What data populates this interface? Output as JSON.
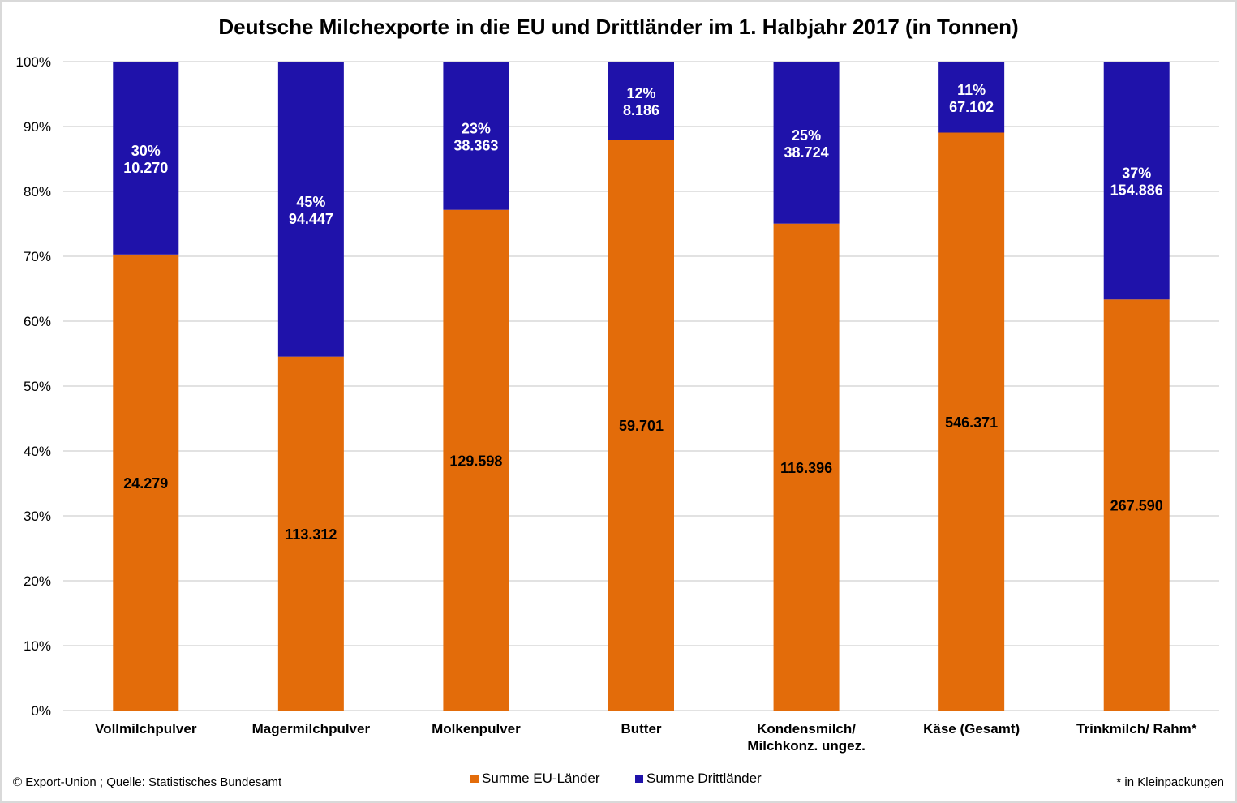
{
  "chart_data": {
    "type": "bar",
    "stacked": "percent",
    "title": "Deutsche Milchexporte in die EU und Drittländer im 1. Halbjahr 2017 (in Tonnen)",
    "xlabel": "",
    "ylabel": "",
    "ylim": [
      0,
      100
    ],
    "yticks": [
      "0%",
      "10%",
      "20%",
      "30%",
      "40%",
      "50%",
      "60%",
      "70%",
      "80%",
      "90%",
      "100%"
    ],
    "grid": true,
    "legend_position": "bottom",
    "categories": [
      [
        "Vollmilchpulver"
      ],
      [
        "Magermilchpulver"
      ],
      [
        "Molkenpulver"
      ],
      [
        "Butter"
      ],
      [
        "Kondensmilch/",
        "Milchkonz. ungez."
      ],
      [
        "Käse (Gesamt)"
      ],
      [
        "Trinkmilch/ Rahm*"
      ]
    ],
    "series": [
      {
        "name": "Summe EU-Länder",
        "color": "#e36c0a",
        "values": [
          24279,
          113312,
          129598,
          59701,
          116396,
          546371,
          267590
        ],
        "labels": [
          "24.279",
          "113.312",
          "129.598",
          "59.701",
          "116.396",
          "546.371",
          "267.590"
        ]
      },
      {
        "name": "Summe Drittländer",
        "color": "#1f12aa",
        "values": [
          10270,
          94447,
          38363,
          8186,
          38724,
          67102,
          154886
        ],
        "labels": [
          "10.270",
          "94.447",
          "38.363",
          "8.186",
          "38.724",
          "67.102",
          "154.886"
        ],
        "percent_labels": [
          "30%",
          "45%",
          "23%",
          "12%",
          "25%",
          "11%",
          "37%"
        ]
      }
    ]
  },
  "footer": {
    "source": "© Export-Union  ; Quelle:  Statistisches  Bundesamt",
    "footnote": "* in Kleinpackungen"
  }
}
